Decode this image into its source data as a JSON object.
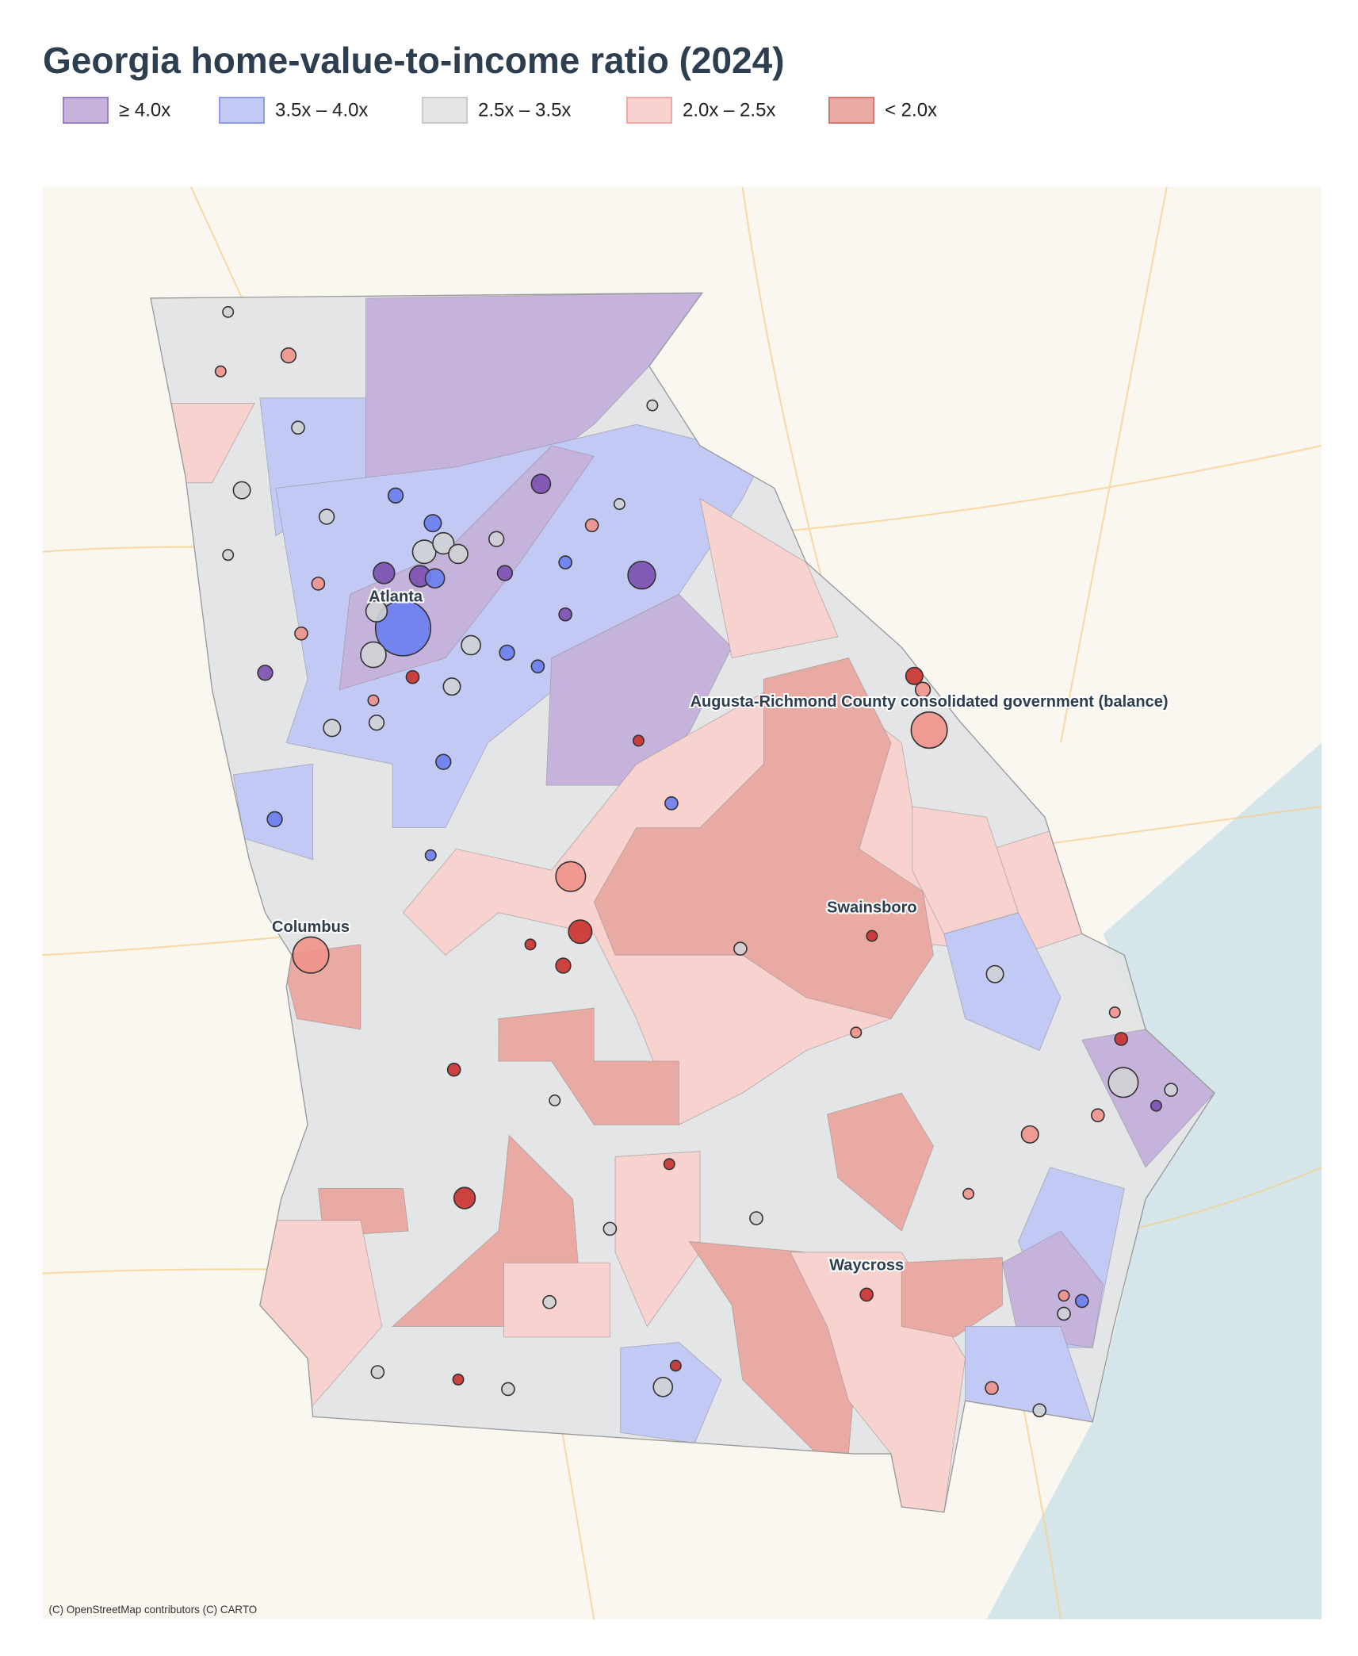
{
  "title": "Georgia home-value-to-income ratio (2024)",
  "legend": [
    {
      "label": "≥ 4.0x",
      "color": "#c5b3dc",
      "edge": "#9b7fc4"
    },
    {
      "label": "3.5x – 4.0x",
      "color": "#c3c9f5",
      "edge": "#8f9ae8"
    },
    {
      "label": "2.5x – 3.5x",
      "color": "#e2e4e5",
      "edge": "#c8cbcd"
    },
    {
      "label": "2.0x – 2.5x",
      "color": "#f8d2cf",
      "edge": "#eeaaa5"
    },
    {
      "label": "< 2.0x",
      "color": "#e9aaa3",
      "edge": "#d6766c"
    }
  ],
  "places": [
    "Atlanta",
    "Augusta-Richmond County consolidated government (balance)",
    "Columbus",
    "Swainsboro",
    "Waycross"
  ],
  "attribution": "(C) OpenStreetMap contributors (C) CARTO"
}
